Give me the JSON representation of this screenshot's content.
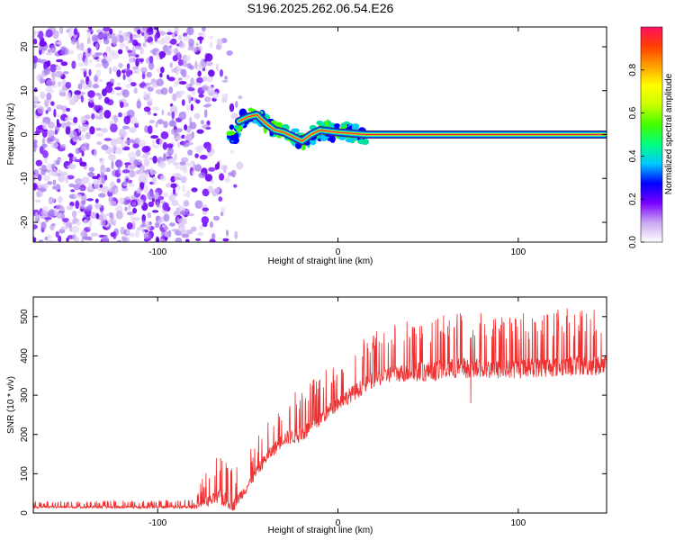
{
  "title": "S196.2025.262.06.54.E26",
  "chart_data": [
    {
      "type": "heatmap",
      "name": "spectrogram",
      "xlabel": "Height of straight line (km)",
      "ylabel": "Frequency (Hz)",
      "xlim": [
        -169,
        149
      ],
      "ylim": [
        -24.5,
        24.5
      ],
      "xticks": [
        -100,
        0,
        100
      ],
      "xtick_labels": [
        "-100",
        "0",
        "100"
      ],
      "yticks": [
        -20,
        -10,
        0,
        10,
        20
      ],
      "ytick_labels": [
        "-20",
        "-10",
        "0",
        "10",
        "20"
      ],
      "noise_region_x": [
        -169,
        -55
      ],
      "signal_frequency_track": [
        {
          "x": -55,
          "y": 3
        },
        {
          "x": -50,
          "y": 4
        },
        {
          "x": -45,
          "y": 4.5
        },
        {
          "x": -40,
          "y": 2.5
        },
        {
          "x": -35,
          "y": 1
        },
        {
          "x": -30,
          "y": 0.5
        },
        {
          "x": -25,
          "y": -0.5
        },
        {
          "x": -20,
          "y": -1.5
        },
        {
          "x": -15,
          "y": 0
        },
        {
          "x": -10,
          "y": 1
        },
        {
          "x": 0,
          "y": 0.5
        },
        {
          "x": 15,
          "y": 0
        },
        {
          "x": 149,
          "y": 0
        }
      ],
      "colorbar": {
        "label": "Normalized spectral amplitude",
        "range": [
          0,
          1
        ],
        "ticks": [
          0.0,
          0.2,
          0.4,
          0.6,
          0.8
        ],
        "tick_labels": [
          "0.0",
          "0.2",
          "0.4",
          "0.6",
          "0.8"
        ],
        "colors": [
          "#ffffff",
          "#c8a8f0",
          "#7a00ff",
          "#0000ff",
          "#00c8ff",
          "#00ff80",
          "#40ff00",
          "#c8ff00",
          "#ffff00",
          "#ffa000",
          "#ff4000",
          "#ff1060"
        ]
      }
    },
    {
      "type": "line",
      "name": "snr",
      "xlabel": "Height of straight line (km)",
      "ylabel": "SNR (10 * v/v)",
      "xlim": [
        -169,
        149
      ],
      "ylim": [
        0,
        550
      ],
      "xticks": [
        -100,
        0,
        100
      ],
      "xtick_labels": [
        "-100",
        "0",
        "100"
      ],
      "yticks": [
        0,
        100,
        200,
        300,
        400,
        500
      ],
      "ytick_labels": [
        "0",
        "100",
        "200",
        "300",
        "400",
        "500"
      ],
      "line_color": "#ee3030",
      "envelope": [
        {
          "x": -169,
          "base": 15,
          "spike": 30
        },
        {
          "x": -80,
          "base": 15,
          "spike": 35
        },
        {
          "x": -75,
          "base": 25,
          "spike": 90
        },
        {
          "x": -65,
          "base": 40,
          "spike": 160
        },
        {
          "x": -58,
          "base": 20,
          "spike": 110
        },
        {
          "x": -50,
          "base": 70,
          "spike": 150
        },
        {
          "x": -40,
          "base": 140,
          "spike": 230
        },
        {
          "x": -30,
          "base": 190,
          "spike": 290
        },
        {
          "x": -20,
          "base": 200,
          "spike": 320
        },
        {
          "x": -10,
          "base": 240,
          "spike": 360
        },
        {
          "x": 0,
          "base": 280,
          "spike": 380
        },
        {
          "x": 10,
          "base": 310,
          "spike": 430
        },
        {
          "x": 20,
          "base": 340,
          "spike": 460
        },
        {
          "x": 30,
          "base": 355,
          "spike": 480
        },
        {
          "x": 50,
          "base": 360,
          "spike": 510
        },
        {
          "x": 70,
          "base": 370,
          "spike": 520
        },
        {
          "x": 90,
          "base": 365,
          "spike": 510
        },
        {
          "x": 110,
          "base": 370,
          "spike": 515
        },
        {
          "x": 130,
          "base": 375,
          "spike": 525
        },
        {
          "x": 149,
          "base": 375,
          "spike": 520
        }
      ]
    }
  ]
}
